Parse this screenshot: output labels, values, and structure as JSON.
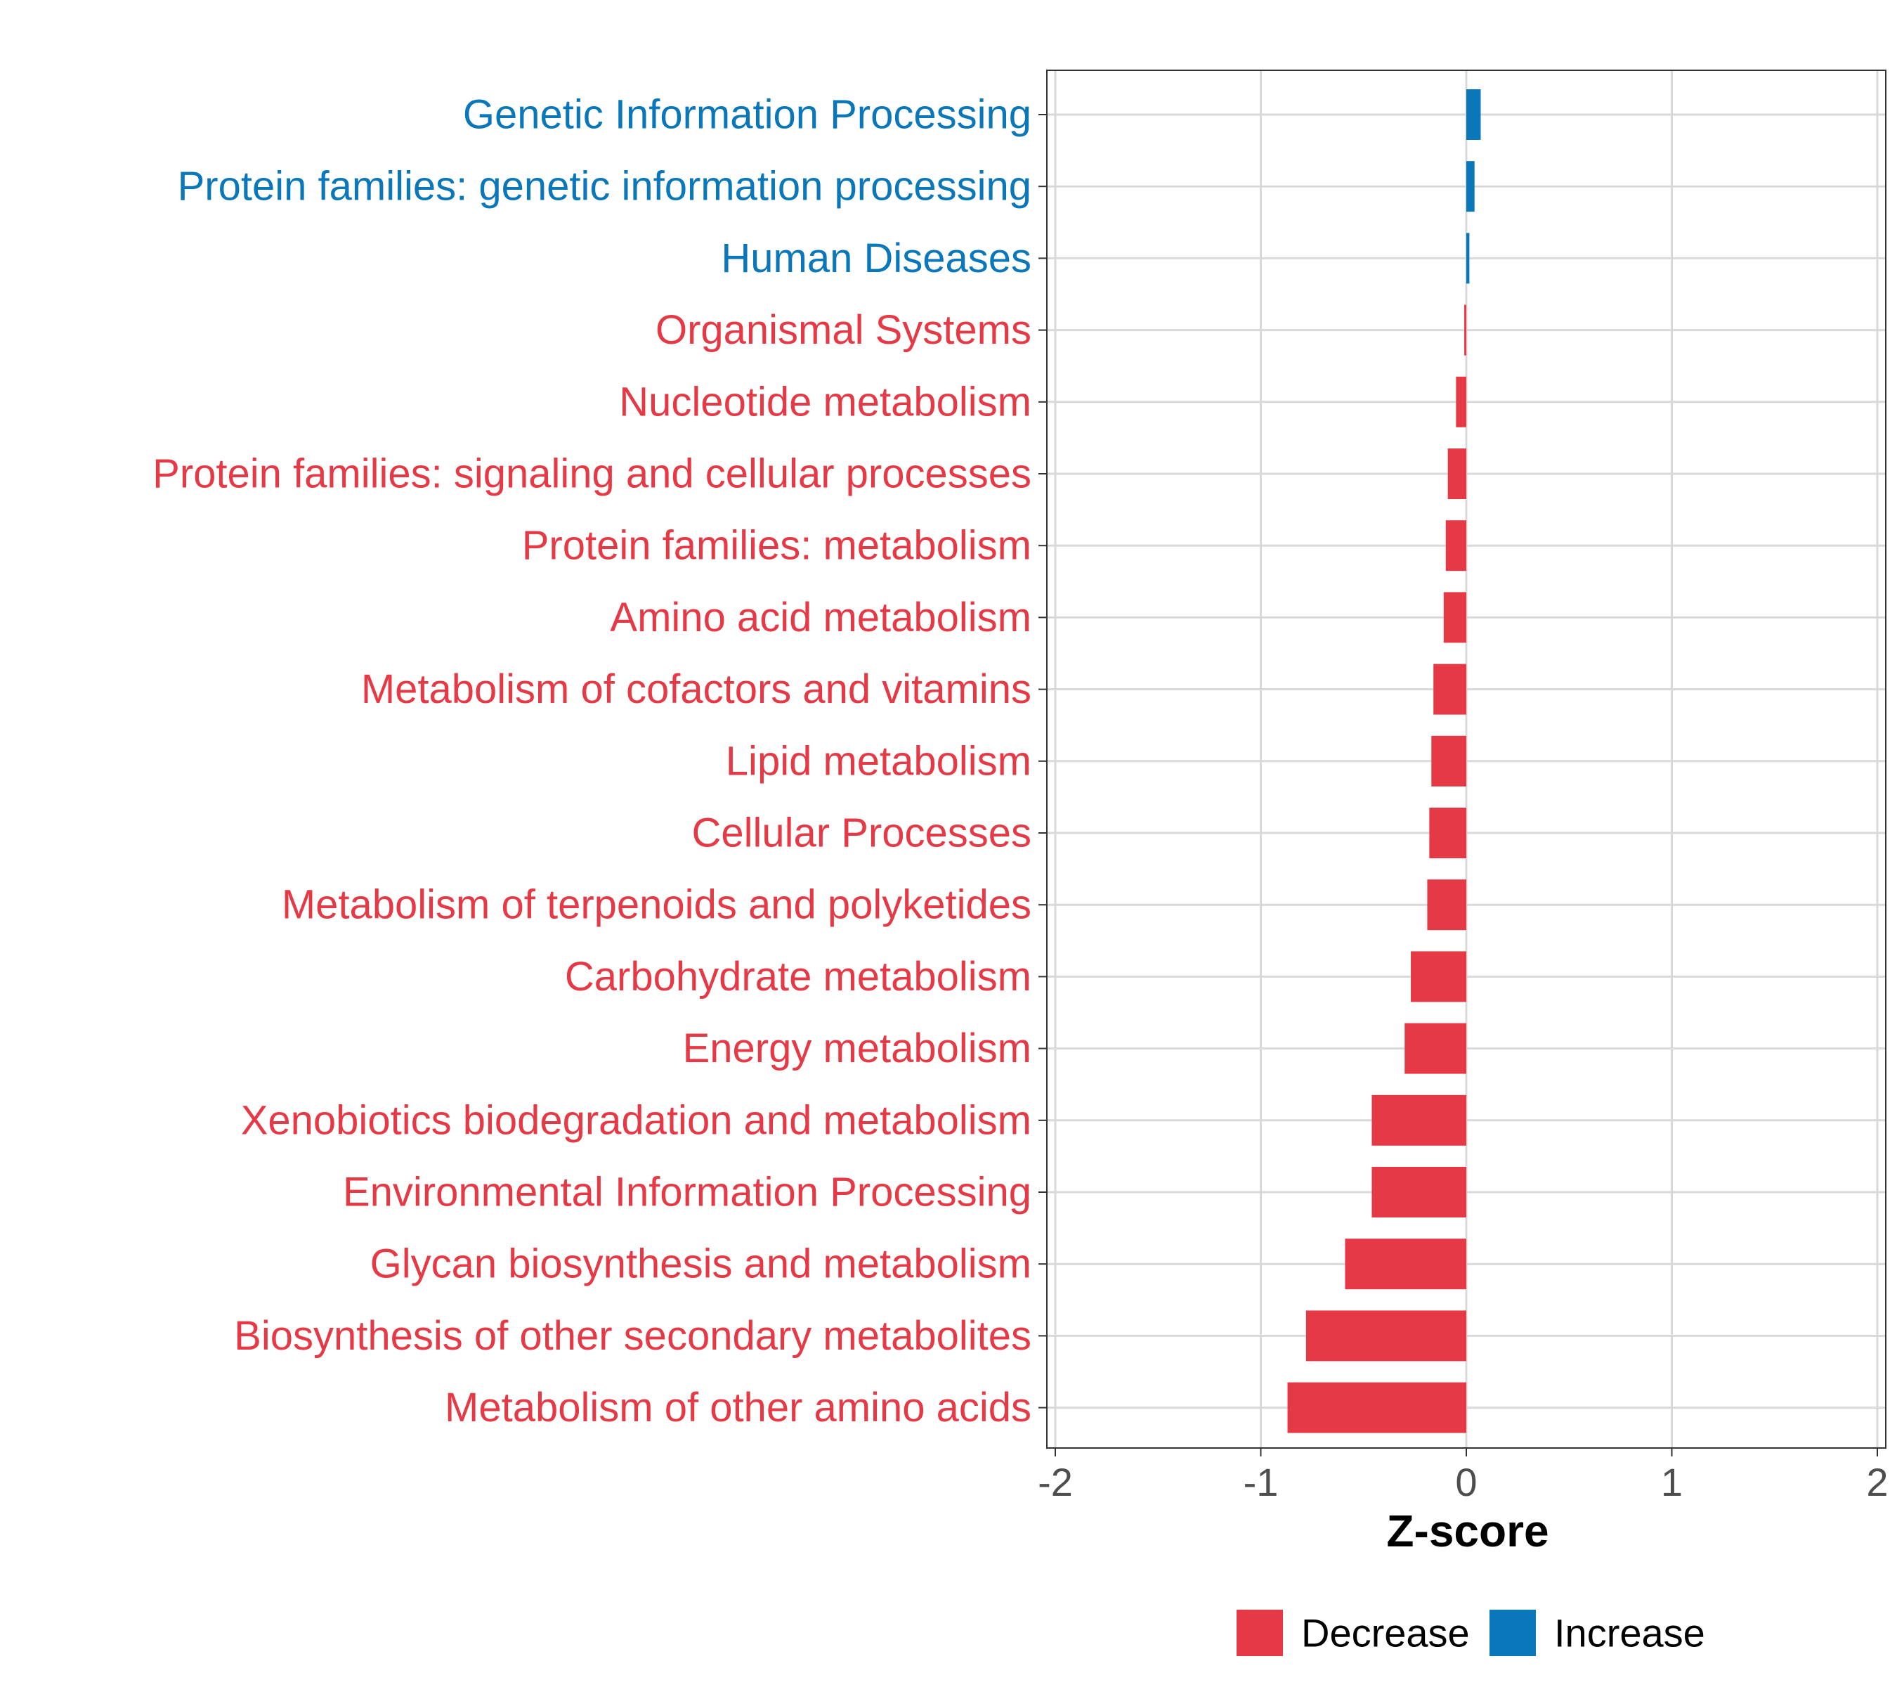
{
  "chart_data": {
    "type": "bar",
    "orientation": "horizontal",
    "title": "",
    "xlabel": "Z-score",
    "ylabel": "",
    "xlim": [
      -2,
      2
    ],
    "xticks": [
      -2,
      -1,
      0,
      1,
      2
    ],
    "xtick_labels": [
      "-2",
      "-1",
      "0",
      "1",
      "2"
    ],
    "grid": true,
    "categories": [
      "Genetic Information Processing",
      "Protein families: genetic information processing",
      "Human Diseases",
      "Organismal Systems",
      "Nucleotide metabolism",
      "Protein families: signaling and cellular processes",
      "Protein families: metabolism",
      "Amino acid metabolism",
      "Metabolism of cofactors and vitamins",
      "Lipid metabolism",
      "Cellular Processes",
      "Metabolism of terpenoids and polyketides",
      "Carbohydrate metabolism",
      "Energy metabolism",
      "Xenobiotics biodegradation and metabolism",
      "Environmental Information Processing",
      "Glycan biosynthesis and metabolism",
      "Biosynthesis of other secondary metabolites",
      "Metabolism of other amino acids"
    ],
    "values": [
      0.07,
      0.04,
      0.015,
      -0.01,
      -0.05,
      -0.09,
      -0.1,
      -0.11,
      -0.16,
      -0.17,
      -0.18,
      -0.19,
      -0.27,
      -0.3,
      -0.46,
      -0.46,
      -0.59,
      -0.78,
      -0.87
    ],
    "groups": [
      "Increase",
      "Increase",
      "Increase",
      "Decrease",
      "Decrease",
      "Decrease",
      "Decrease",
      "Decrease",
      "Decrease",
      "Decrease",
      "Decrease",
      "Decrease",
      "Decrease",
      "Decrease",
      "Decrease",
      "Decrease",
      "Decrease",
      "Decrease",
      "Decrease"
    ],
    "legend": {
      "position": "bottom",
      "entries": [
        {
          "label": "Decrease",
          "color": "#E63946"
        },
        {
          "label": "Increase",
          "color": "#0A77BA"
        }
      ]
    },
    "colors": {
      "Decrease": "#E63946",
      "Increase": "#0A77BA",
      "grid": "#D9D9D9",
      "axis": "#333333",
      "tick_text": "#4D4D4D"
    }
  }
}
